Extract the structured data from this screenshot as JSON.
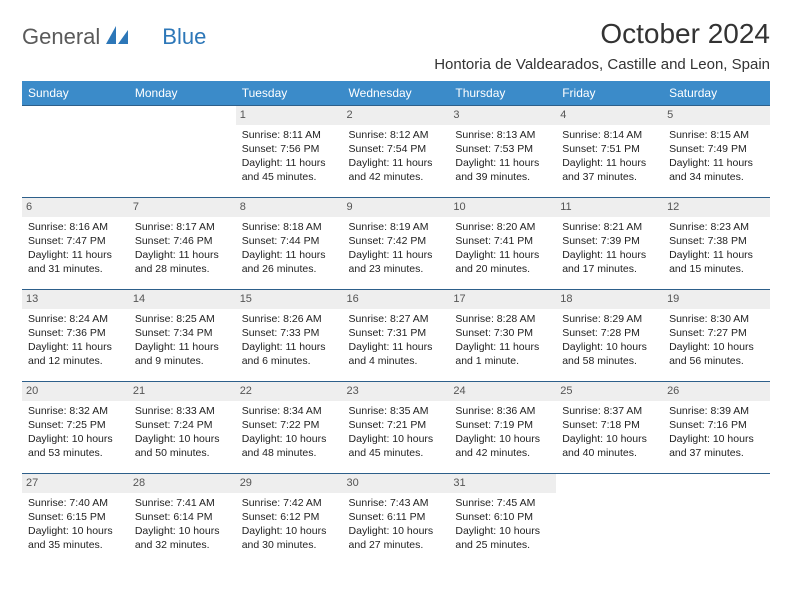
{
  "brand": {
    "part1": "General",
    "part2": "Blue"
  },
  "title": "October 2024",
  "location": "Hontoria de Valdearados, Castille and Leon, Spain",
  "day_headers": [
    "Sunday",
    "Monday",
    "Tuesday",
    "Wednesday",
    "Thursday",
    "Friday",
    "Saturday"
  ],
  "colors": {
    "header_bg": "#3b8bc9",
    "header_fg": "#ffffff",
    "cell_border": "#2d5f8a",
    "daynum_bg": "#eeeeee",
    "logo_blue": "#2d77b8",
    "logo_gray": "#5a5a5a"
  },
  "weeks": [
    [
      {
        "n": "",
        "sunrise": "",
        "sunset": "",
        "daylight": ""
      },
      {
        "n": "",
        "sunrise": "",
        "sunset": "",
        "daylight": ""
      },
      {
        "n": "1",
        "sunrise": "Sunrise: 8:11 AM",
        "sunset": "Sunset: 7:56 PM",
        "daylight": "Daylight: 11 hours and 45 minutes."
      },
      {
        "n": "2",
        "sunrise": "Sunrise: 8:12 AM",
        "sunset": "Sunset: 7:54 PM",
        "daylight": "Daylight: 11 hours and 42 minutes."
      },
      {
        "n": "3",
        "sunrise": "Sunrise: 8:13 AM",
        "sunset": "Sunset: 7:53 PM",
        "daylight": "Daylight: 11 hours and 39 minutes."
      },
      {
        "n": "4",
        "sunrise": "Sunrise: 8:14 AM",
        "sunset": "Sunset: 7:51 PM",
        "daylight": "Daylight: 11 hours and 37 minutes."
      },
      {
        "n": "5",
        "sunrise": "Sunrise: 8:15 AM",
        "sunset": "Sunset: 7:49 PM",
        "daylight": "Daylight: 11 hours and 34 minutes."
      }
    ],
    [
      {
        "n": "6",
        "sunrise": "Sunrise: 8:16 AM",
        "sunset": "Sunset: 7:47 PM",
        "daylight": "Daylight: 11 hours and 31 minutes."
      },
      {
        "n": "7",
        "sunrise": "Sunrise: 8:17 AM",
        "sunset": "Sunset: 7:46 PM",
        "daylight": "Daylight: 11 hours and 28 minutes."
      },
      {
        "n": "8",
        "sunrise": "Sunrise: 8:18 AM",
        "sunset": "Sunset: 7:44 PM",
        "daylight": "Daylight: 11 hours and 26 minutes."
      },
      {
        "n": "9",
        "sunrise": "Sunrise: 8:19 AM",
        "sunset": "Sunset: 7:42 PM",
        "daylight": "Daylight: 11 hours and 23 minutes."
      },
      {
        "n": "10",
        "sunrise": "Sunrise: 8:20 AM",
        "sunset": "Sunset: 7:41 PM",
        "daylight": "Daylight: 11 hours and 20 minutes."
      },
      {
        "n": "11",
        "sunrise": "Sunrise: 8:21 AM",
        "sunset": "Sunset: 7:39 PM",
        "daylight": "Daylight: 11 hours and 17 minutes."
      },
      {
        "n": "12",
        "sunrise": "Sunrise: 8:23 AM",
        "sunset": "Sunset: 7:38 PM",
        "daylight": "Daylight: 11 hours and 15 minutes."
      }
    ],
    [
      {
        "n": "13",
        "sunrise": "Sunrise: 8:24 AM",
        "sunset": "Sunset: 7:36 PM",
        "daylight": "Daylight: 11 hours and 12 minutes."
      },
      {
        "n": "14",
        "sunrise": "Sunrise: 8:25 AM",
        "sunset": "Sunset: 7:34 PM",
        "daylight": "Daylight: 11 hours and 9 minutes."
      },
      {
        "n": "15",
        "sunrise": "Sunrise: 8:26 AM",
        "sunset": "Sunset: 7:33 PM",
        "daylight": "Daylight: 11 hours and 6 minutes."
      },
      {
        "n": "16",
        "sunrise": "Sunrise: 8:27 AM",
        "sunset": "Sunset: 7:31 PM",
        "daylight": "Daylight: 11 hours and 4 minutes."
      },
      {
        "n": "17",
        "sunrise": "Sunrise: 8:28 AM",
        "sunset": "Sunset: 7:30 PM",
        "daylight": "Daylight: 11 hours and 1 minute."
      },
      {
        "n": "18",
        "sunrise": "Sunrise: 8:29 AM",
        "sunset": "Sunset: 7:28 PM",
        "daylight": "Daylight: 10 hours and 58 minutes."
      },
      {
        "n": "19",
        "sunrise": "Sunrise: 8:30 AM",
        "sunset": "Sunset: 7:27 PM",
        "daylight": "Daylight: 10 hours and 56 minutes."
      }
    ],
    [
      {
        "n": "20",
        "sunrise": "Sunrise: 8:32 AM",
        "sunset": "Sunset: 7:25 PM",
        "daylight": "Daylight: 10 hours and 53 minutes."
      },
      {
        "n": "21",
        "sunrise": "Sunrise: 8:33 AM",
        "sunset": "Sunset: 7:24 PM",
        "daylight": "Daylight: 10 hours and 50 minutes."
      },
      {
        "n": "22",
        "sunrise": "Sunrise: 8:34 AM",
        "sunset": "Sunset: 7:22 PM",
        "daylight": "Daylight: 10 hours and 48 minutes."
      },
      {
        "n": "23",
        "sunrise": "Sunrise: 8:35 AM",
        "sunset": "Sunset: 7:21 PM",
        "daylight": "Daylight: 10 hours and 45 minutes."
      },
      {
        "n": "24",
        "sunrise": "Sunrise: 8:36 AM",
        "sunset": "Sunset: 7:19 PM",
        "daylight": "Daylight: 10 hours and 42 minutes."
      },
      {
        "n": "25",
        "sunrise": "Sunrise: 8:37 AM",
        "sunset": "Sunset: 7:18 PM",
        "daylight": "Daylight: 10 hours and 40 minutes."
      },
      {
        "n": "26",
        "sunrise": "Sunrise: 8:39 AM",
        "sunset": "Sunset: 7:16 PM",
        "daylight": "Daylight: 10 hours and 37 minutes."
      }
    ],
    [
      {
        "n": "27",
        "sunrise": "Sunrise: 7:40 AM",
        "sunset": "Sunset: 6:15 PM",
        "daylight": "Daylight: 10 hours and 35 minutes."
      },
      {
        "n": "28",
        "sunrise": "Sunrise: 7:41 AM",
        "sunset": "Sunset: 6:14 PM",
        "daylight": "Daylight: 10 hours and 32 minutes."
      },
      {
        "n": "29",
        "sunrise": "Sunrise: 7:42 AM",
        "sunset": "Sunset: 6:12 PM",
        "daylight": "Daylight: 10 hours and 30 minutes."
      },
      {
        "n": "30",
        "sunrise": "Sunrise: 7:43 AM",
        "sunset": "Sunset: 6:11 PM",
        "daylight": "Daylight: 10 hours and 27 minutes."
      },
      {
        "n": "31",
        "sunrise": "Sunrise: 7:45 AM",
        "sunset": "Sunset: 6:10 PM",
        "daylight": "Daylight: 10 hours and 25 minutes."
      },
      {
        "n": "",
        "sunrise": "",
        "sunset": "",
        "daylight": ""
      },
      {
        "n": "",
        "sunrise": "",
        "sunset": "",
        "daylight": ""
      }
    ]
  ]
}
